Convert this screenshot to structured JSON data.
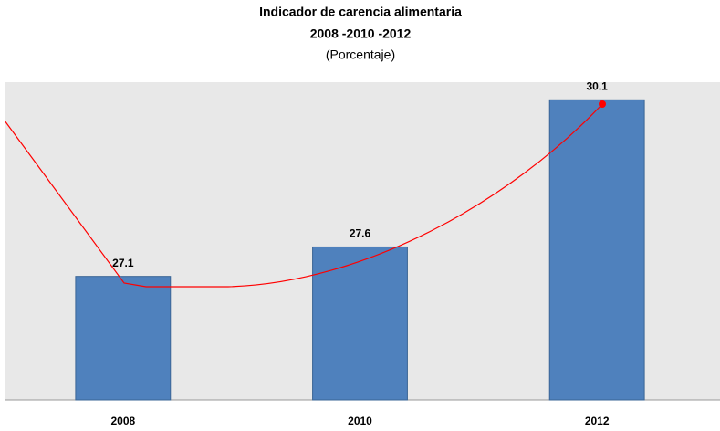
{
  "chart_data": {
    "type": "bar",
    "title": "Indicador de carencia alimentaria",
    "subtitle": "2008 -2010 -2012",
    "unit_label": "(Porcentaje)",
    "categories": [
      "2008",
      "2010",
      "2012"
    ],
    "values": [
      27.1,
      27.6,
      30.1
    ],
    "color": "#4f81bd",
    "ylim": [
      25,
      30.4
    ]
  }
}
